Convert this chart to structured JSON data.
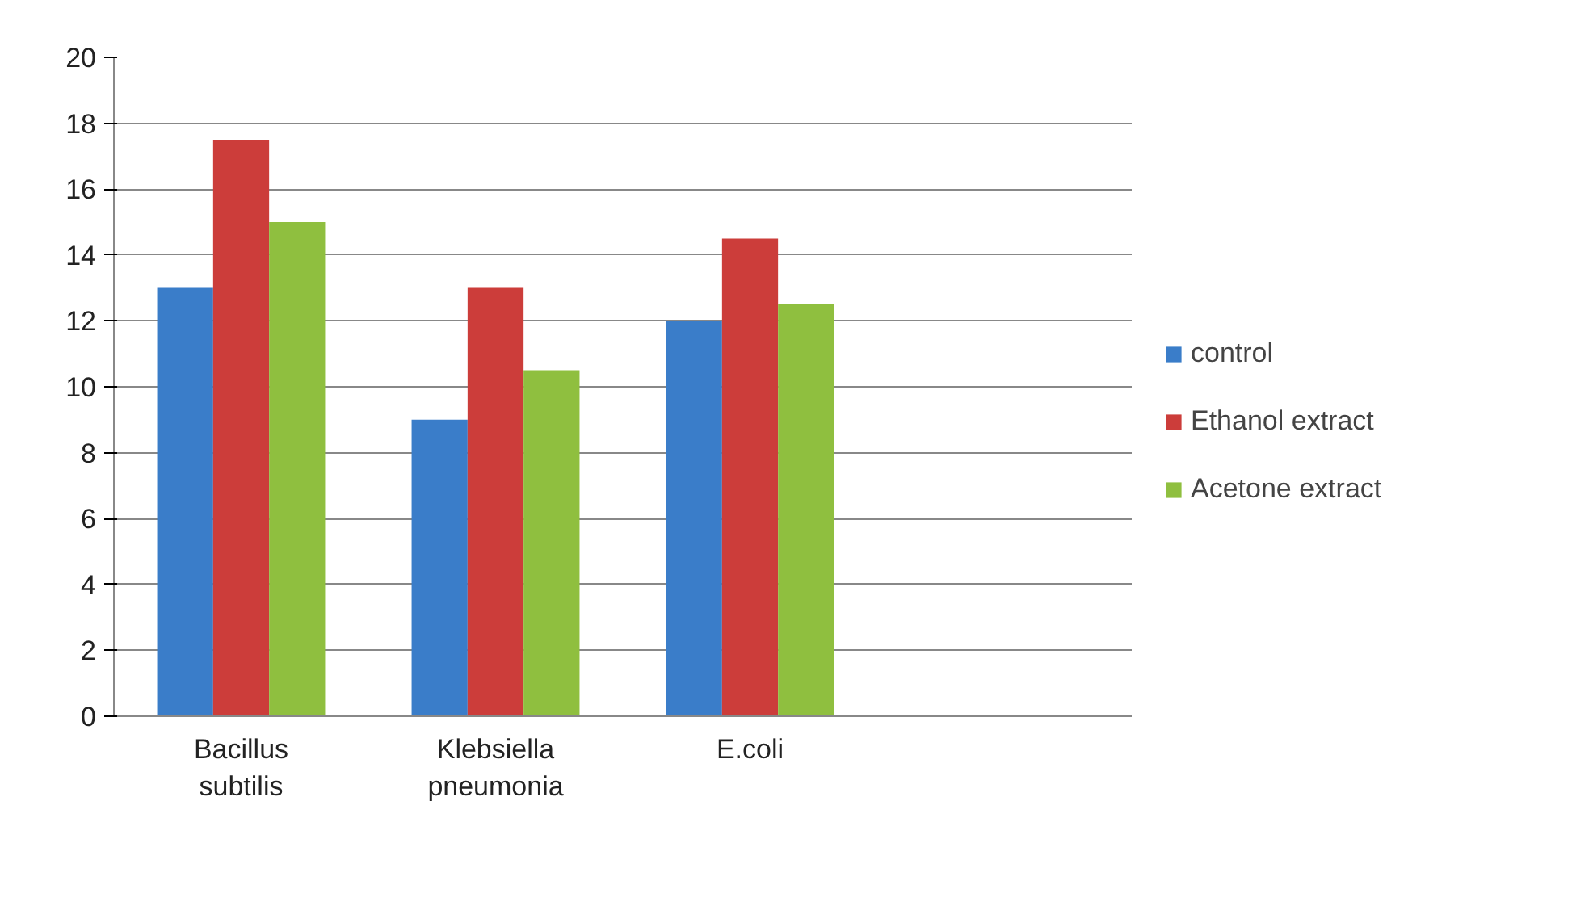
{
  "chart_data": {
    "type": "bar",
    "categories": [
      "Bacillus subtilis",
      "Klebsiella pneumonia",
      "E.coli",
      null
    ],
    "series": [
      {
        "name": "control",
        "color": "#3a7dc9",
        "values": [
          13,
          9,
          12,
          null
        ]
      },
      {
        "name": "Ethanol extract",
        "color": "#cc3d3a",
        "values": [
          17.5,
          13,
          14.5,
          null
        ]
      },
      {
        "name": "Acetone extract",
        "color": "#8fbf3f",
        "values": [
          15,
          10.5,
          12.5,
          null
        ]
      }
    ],
    "ylim": [
      0,
      20
    ],
    "yticks": [
      0,
      2,
      4,
      6,
      8,
      10,
      12,
      14,
      16,
      18,
      20
    ],
    "grid": "y",
    "legend": "right"
  }
}
